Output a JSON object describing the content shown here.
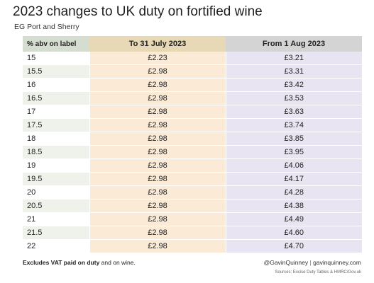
{
  "header": {
    "title": "2023 changes to UK duty on fortified wine",
    "subtitle": "EG Port and Sherry"
  },
  "colors": {
    "abv_header_bg": "#d4ddd0",
    "old_header_bg": "#e8d9b6",
    "new_header_bg": "#d4d4d4",
    "old_column_bg": "#fbebd6",
    "new_column_bg": "#e9e4f2",
    "alt_row_bg": "#eef2ea"
  },
  "chart_data": {
    "type": "table",
    "title": "2023 changes to UK duty on fortified wine",
    "subtitle": "EG Port and Sherry",
    "columns": [
      "% abv on label",
      "To 31 July 2023",
      "From 1 Aug 2023"
    ],
    "rows": [
      [
        "15",
        "£2.23",
        "£3.21"
      ],
      [
        "15.5",
        "£2.98",
        "£3.31"
      ],
      [
        "16",
        "£2.98",
        "£3.42"
      ],
      [
        "16.5",
        "£2.98",
        "£3.53"
      ],
      [
        "17",
        "£2.98",
        "£3.63"
      ],
      [
        "17.5",
        "£2.98",
        "£3.74"
      ],
      [
        "18",
        "£2.98",
        "£3.85"
      ],
      [
        "18.5",
        "£2.98",
        "£3.95"
      ],
      [
        "19",
        "£2.98",
        "£4.06"
      ],
      [
        "19.5",
        "£2.98",
        "£4.17"
      ],
      [
        "20",
        "£2.98",
        "£4.28"
      ],
      [
        "20.5",
        "£2.98",
        "£4.38"
      ],
      [
        "21",
        "£2.98",
        "£4.49"
      ],
      [
        "21.5",
        "£2.98",
        "£4.60"
      ],
      [
        "22",
        "£2.98",
        "£4.70"
      ]
    ]
  },
  "footer": {
    "note_bold": "Excludes VAT paid on duty",
    "note_rest": " and on wine.",
    "credit_handle": "@GavinQuinney",
    "credit_sep": "|",
    "credit_site": "gavinquinney.com",
    "sources": "Sources: Excise Duty Tables & HMRC/Gov.uk"
  }
}
